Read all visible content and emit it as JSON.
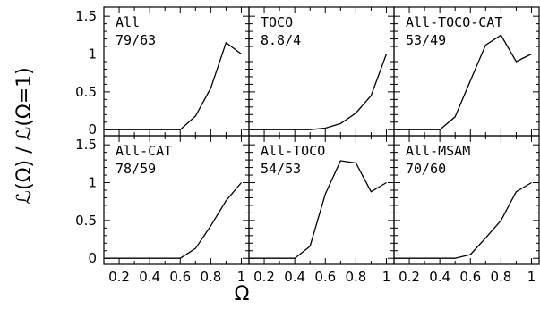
{
  "chart_data": {
    "type": "line",
    "layout": "2x3 grid of panels sharing axes",
    "xlabel": "Ω",
    "ylabel": "ℒ(Ω) / ℒ(Ω=1)",
    "xlim": [
      0.1,
      1.05
    ],
    "ylim": [
      -0.08,
      1.62
    ],
    "x_ticks": [
      "0.2",
      "0.4",
      "0.6",
      "0.8",
      "1"
    ],
    "y_ticks": [
      "0",
      "0.5",
      "1",
      "1.5"
    ],
    "grid": false,
    "panels": [
      {
        "name": "All",
        "annotation": "79/63",
        "x": [
          0.1,
          0.6,
          0.7,
          0.8,
          0.9,
          1.0
        ],
        "y": [
          0.0,
          0.0,
          0.18,
          0.55,
          1.15,
          1.0
        ]
      },
      {
        "name": "TOCO",
        "annotation": "8.8/4",
        "x": [
          0.1,
          0.5,
          0.6,
          0.7,
          0.8,
          0.9,
          1.0
        ],
        "y": [
          0.0,
          0.0,
          0.02,
          0.08,
          0.22,
          0.45,
          1.0
        ]
      },
      {
        "name": "All-TOCO-CAT",
        "annotation": "53/49",
        "x": [
          0.1,
          0.4,
          0.5,
          0.6,
          0.7,
          0.8,
          0.9,
          1.0
        ],
        "y": [
          0.0,
          0.0,
          0.17,
          0.65,
          1.12,
          1.25,
          0.9,
          1.0
        ]
      },
      {
        "name": "All-CAT",
        "annotation": "78/59",
        "x": [
          0.1,
          0.6,
          0.7,
          0.8,
          0.9,
          1.0
        ],
        "y": [
          0.0,
          0.0,
          0.13,
          0.43,
          0.76,
          1.0
        ]
      },
      {
        "name": "All-TOCO",
        "annotation": "54/53",
        "x": [
          0.1,
          0.4,
          0.5,
          0.6,
          0.7,
          0.8,
          0.9,
          1.0
        ],
        "y": [
          0.0,
          0.0,
          0.16,
          0.85,
          1.29,
          1.26,
          0.88,
          1.0
        ]
      },
      {
        "name": "All-MSAM",
        "annotation": "70/60",
        "x": [
          0.1,
          0.5,
          0.6,
          0.7,
          0.8,
          0.9,
          1.0
        ],
        "y": [
          0.0,
          0.0,
          0.05,
          0.27,
          0.5,
          0.88,
          1.0
        ]
      }
    ]
  }
}
